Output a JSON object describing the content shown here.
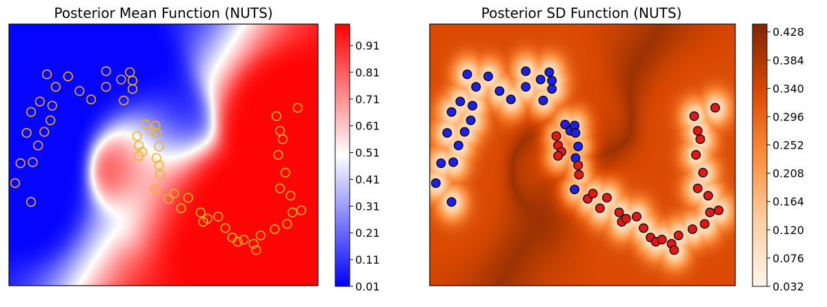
{
  "chart_data": [
    {
      "type": "heatmap",
      "title": "Posterior Mean Function (NUTS)",
      "colormap": "bwr",
      "colorbar_ticks": [
        0.01,
        0.11,
        0.21,
        0.31,
        0.41,
        0.51,
        0.61,
        0.71,
        0.81,
        0.91
      ],
      "colorbar_range": [
        0.01,
        0.99
      ],
      "point_style": {
        "fill": "none",
        "stroke": "#f2b21c"
      },
      "xlim": [
        -1.25,
        2.25
      ],
      "ylim": [
        -1.0,
        1.5
      ],
      "grid": false,
      "axes_ticks": false
    },
    {
      "type": "heatmap",
      "title": "Posterior SD Function (NUTS)",
      "colormap": "Oranges",
      "colorbar_ticks": [
        0.032,
        0.076,
        0.12,
        0.164,
        0.208,
        0.252,
        0.296,
        0.34,
        0.384,
        0.428
      ],
      "colorbar_range": [
        0.032,
        0.44
      ],
      "class_colors": {
        "class_0": "#1f1fe6",
        "class_1": "#e01818"
      },
      "point_style": {
        "stroke": "#000000"
      },
      "xlim": [
        -1.25,
        2.25
      ],
      "ylim": [
        -1.0,
        1.5
      ],
      "grid": false,
      "axes_ticks": false
    }
  ],
  "points": {
    "class_0": [
      [
        -0.82,
        1.02
      ],
      [
        -0.72,
        0.9
      ],
      [
        -0.58,
        1.0
      ],
      [
        -0.45,
        0.86
      ],
      [
        -0.32,
        0.78
      ],
      [
        -0.15,
        1.05
      ],
      [
        -0.15,
        0.9
      ],
      [
        0.02,
        0.97
      ],
      [
        0.05,
        0.77
      ],
      [
        0.12,
        1.04
      ],
      [
        0.15,
        0.96
      ],
      [
        0.15,
        0.88
      ],
      [
        -0.9,
        0.76
      ],
      [
        -1.0,
        0.66
      ],
      [
        -1.05,
        0.46
      ],
      [
        -0.92,
        0.34
      ],
      [
        -0.98,
        0.18
      ],
      [
        -1.12,
        0.17
      ],
      [
        -1.18,
        -0.02
      ],
      [
        -1.0,
        -0.2
      ],
      [
        -0.78,
        0.58
      ],
      [
        -0.85,
        0.47
      ],
      [
        0.3,
        0.54
      ],
      [
        0.36,
        0.48
      ],
      [
        0.41,
        0.53
      ],
      [
        0.42,
        0.46
      ],
      [
        0.45,
        0.33
      ],
      [
        0.42,
        0.22
      ],
      [
        0.41,
        -0.08
      ],
      [
        -0.76,
        0.72
      ]
    ],
    "class_1": [
      [
        0.2,
        0.43
      ],
      [
        0.22,
        0.34
      ],
      [
        0.26,
        0.28
      ],
      [
        0.22,
        0.24
      ],
      [
        0.45,
        0.15
      ],
      [
        0.46,
        0.06
      ],
      [
        0.56,
        -0.17
      ],
      [
        0.62,
        -0.12
      ],
      [
        0.7,
        -0.26
      ],
      [
        0.78,
        -0.16
      ],
      [
        0.92,
        -0.3
      ],
      [
        0.95,
        -0.39
      ],
      [
        1.0,
        -0.36
      ],
      [
        1.12,
        -0.34
      ],
      [
        1.2,
        -0.45
      ],
      [
        1.28,
        -0.54
      ],
      [
        1.34,
        -0.58
      ],
      [
        1.41,
        -0.56
      ],
      [
        1.52,
        -0.6
      ],
      [
        1.6,
        -0.52
      ],
      [
        1.76,
        -0.46
      ],
      [
        1.9,
        -0.41
      ],
      [
        1.96,
        -0.3
      ],
      [
        2.06,
        -0.28
      ],
      [
        1.94,
        -0.14
      ],
      [
        1.82,
        -0.07
      ],
      [
        1.88,
        0.08
      ],
      [
        1.8,
        0.25
      ],
      [
        1.85,
        0.4
      ],
      [
        1.82,
        0.48
      ],
      [
        1.78,
        0.62
      ],
      [
        2.02,
        0.7
      ],
      [
        1.55,
        -0.66
      ]
    ]
  },
  "colors": {
    "bwr_low": "#0000ff",
    "bwr_mid": "#ffffff",
    "bwr_high": "#ff0000",
    "oranges_low": "#fff5eb",
    "oranges_high": "#7f2704"
  }
}
